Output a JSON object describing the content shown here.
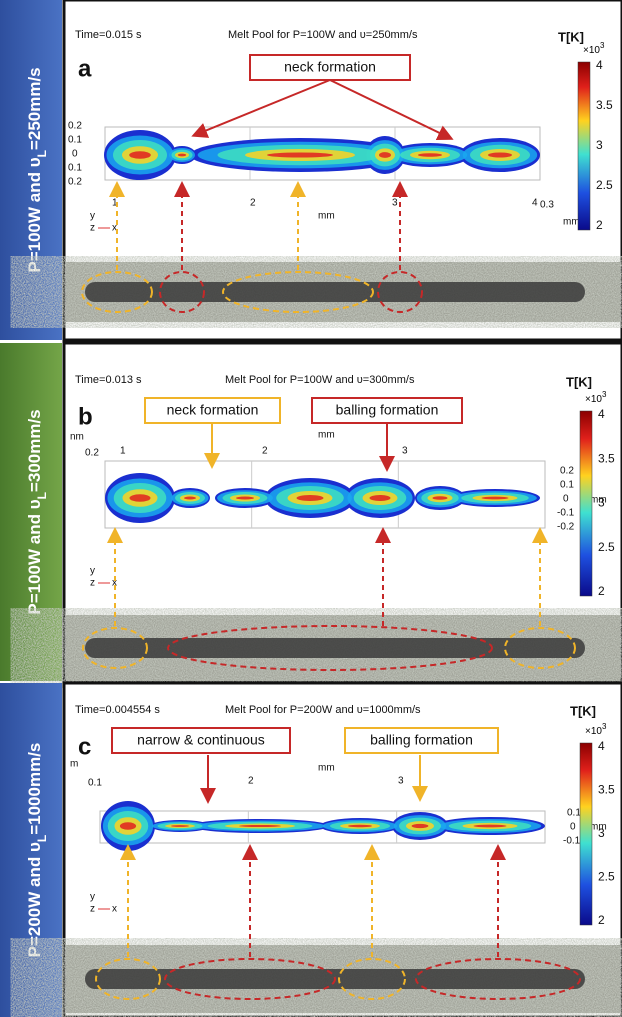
{
  "panels": [
    {
      "side_label": {
        "prefix": "P=100W and υ",
        "sub": "L",
        "suffix": "=250mm/s"
      },
      "letter": "a",
      "time": "Time=0.015 s",
      "title": "Melt Pool for P=100W and υ=250mm/s",
      "colorbar": {
        "label": "T[K]",
        "multiplier": "×10",
        "exponent": "3",
        "ticks": [
          "4",
          "3.5",
          "3",
          "2.5",
          "2"
        ]
      },
      "annotations": [
        {
          "text": "neck formation",
          "color": "#c62828"
        }
      ],
      "axis_texts": [
        "0.2",
        "0.1",
        "0",
        "0.1",
        "0.2",
        "1",
        "2",
        "3",
        "4",
        "mm",
        "0.3",
        "mm"
      ],
      "triad": [
        "y",
        "z",
        "x"
      ]
    },
    {
      "side_label": {
        "prefix": "P=100W and υ",
        "sub": "L",
        "suffix": "=300mm/s"
      },
      "letter": "b",
      "time": "Time=0.013 s",
      "title": "Melt Pool for P=100W and υ=300mm/s",
      "colorbar": {
        "label": "T[K]",
        "multiplier": "×10",
        "exponent": "3",
        "ticks": [
          "4",
          "3.5",
          "3",
          "2.5",
          "2"
        ]
      },
      "annotations": [
        {
          "text": "neck formation",
          "color": "#f0b429"
        },
        {
          "text": "balling formation",
          "color": "#c62828"
        }
      ],
      "axis_texts": [
        "nm",
        "0.2",
        "1",
        "2",
        "mm",
        "3",
        "0.2",
        "0.1",
        "0",
        "-0.1",
        "-0.2",
        "mm"
      ],
      "triad": [
        "y",
        "z",
        "x"
      ]
    },
    {
      "side_label": {
        "prefix": "P=200W and υ",
        "sub": "L",
        "suffix": "=1000mm/s"
      },
      "letter": "c",
      "time": "Time=0.004554 s",
      "title": "Melt Pool for P=200W and υ=1000mm/s",
      "colorbar": {
        "label": "T[K]",
        "multiplier": "×10",
        "exponent": "3",
        "ticks": [
          "4",
          "3.5",
          "3",
          "2.5",
          "2"
        ]
      },
      "annotations": [
        {
          "text": "narrow & continuous",
          "color": "#c62828"
        },
        {
          "text": "balling formation",
          "color": "#f0b429"
        }
      ],
      "axis_texts": [
        "m",
        "0.1",
        "2",
        "mm",
        "3",
        "0.1",
        "0",
        "-0.1",
        "mm"
      ],
      "triad": [
        "y",
        "z",
        "x"
      ]
    }
  ]
}
